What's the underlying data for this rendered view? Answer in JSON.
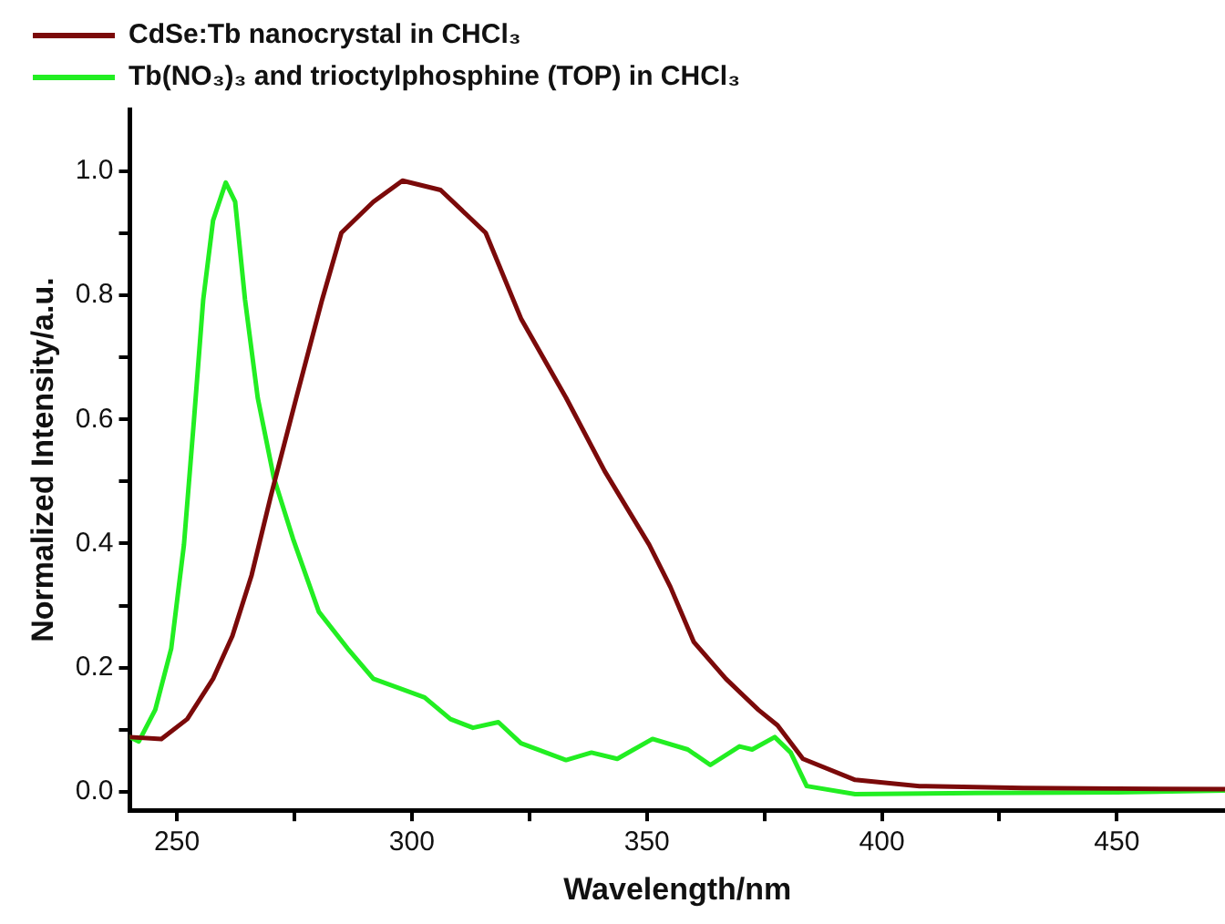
{
  "chart_data": {
    "type": "line",
    "xlabel": "Wavelength/nm",
    "ylabel": "Normalized Intensity/a.u.",
    "xlim": [
      240,
      473
    ],
    "ylim": [
      -0.03,
      1.1
    ],
    "xticks": [
      250,
      {
        "value": 275,
        "label": null
      },
      300,
      {
        "value": 325,
        "label": null
      },
      350,
      {
        "value": 375,
        "label": null
      },
      400,
      {
        "value": 425,
        "label": null
      },
      450
    ],
    "yticks": [
      {
        "value": 0,
        "label": "0.0"
      },
      {
        "value": 0.1,
        "label": null
      },
      0.2,
      {
        "value": 0.3,
        "label": null
      },
      0.4,
      {
        "value": 0.5,
        "label": null
      },
      0.6,
      {
        "value": 0.7,
        "label": null
      },
      0.8,
      {
        "value": 0.9,
        "label": null
      },
      {
        "value": 1,
        "label": "1.0"
      }
    ],
    "grid": false,
    "legend": "top left",
    "marker": "none",
    "line_style": "solid",
    "series": [
      {
        "name": "CdSe:Tb nanocrystal in CHCl₃",
        "color": "#7b0a0a",
        "x": [
          240,
          246.7,
          252.2,
          257.7,
          261.8,
          265.9,
          270,
          275.4,
          280.9,
          285,
          291.8,
          298,
          306.1,
          315.7,
          323.2,
          332.8,
          341,
          350.5,
          355,
          360,
          366.8,
          373.7,
          377.8,
          383.2,
          394.3,
          408,
          430,
          450,
          473
        ],
        "values": [
          0.088,
          0.085,
          0.117,
          0.182,
          0.251,
          0.349,
          0.477,
          0.635,
          0.793,
          0.901,
          0.951,
          0.985,
          0.97,
          0.901,
          0.763,
          0.635,
          0.517,
          0.398,
          0.33,
          0.241,
          0.182,
          0.132,
          0.107,
          0.053,
          0.019,
          0.009,
          0.006,
          0.005,
          0.004
        ]
      },
      {
        "name": "Tb(NO₃)₃ and trioctylphosphine (TOP) in CHCl₃",
        "color": "#22ee22",
        "x": [
          240,
          241.9,
          245.4,
          248.8,
          251.5,
          253.6,
          255.6,
          257.7,
          260.4,
          262.4,
          264.5,
          267.2,
          270.6,
          274.7,
          280.2,
          286.3,
          291.8,
          302.7,
          308.2,
          313,
          318.4,
          323.2,
          332.8,
          338.2,
          343.7,
          351.2,
          358.7,
          363.5,
          369.7,
          372.4,
          377.2,
          380.6,
          384,
          394.3,
          420,
          450,
          473
        ],
        "values": [
          0.088,
          0.081,
          0.132,
          0.231,
          0.398,
          0.596,
          0.793,
          0.921,
          0.982,
          0.951,
          0.793,
          0.635,
          0.507,
          0.408,
          0.29,
          0.231,
          0.182,
          0.152,
          0.117,
          0.103,
          0.112,
          0.078,
          0.051,
          0.063,
          0.053,
          0.085,
          0.068,
          0.043,
          0.073,
          0.068,
          0.088,
          0.063,
          0.009,
          -0.004,
          -0.002,
          -0.001,
          0.002
        ]
      }
    ]
  }
}
